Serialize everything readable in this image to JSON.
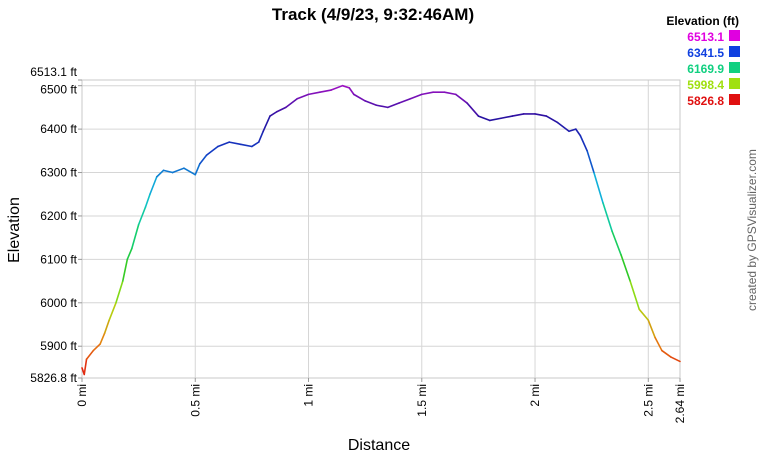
{
  "chart_data": {
    "type": "line",
    "title": "Track (4/9/23, 9:32:46AM)",
    "xlabel": "Distance",
    "ylabel": "Elevation",
    "xlim": [
      0,
      2.64
    ],
    "ylim": [
      5826.8,
      6513.1
    ],
    "x_ticks": [
      {
        "v": 0,
        "label": "0 mi"
      },
      {
        "v": 0.5,
        "label": "0.5 mi"
      },
      {
        "v": 1,
        "label": "1 mi"
      },
      {
        "v": 1.5,
        "label": "1.5 mi"
      },
      {
        "v": 2,
        "label": "2 mi"
      },
      {
        "v": 2.5,
        "label": "2.5 mi"
      },
      {
        "v": 2.64,
        "label": "2.64 mi"
      }
    ],
    "y_ticks": [
      {
        "v": 5826.8,
        "label": "5826.8 ft"
      },
      {
        "v": 5900,
        "label": "5900 ft"
      },
      {
        "v": 6000,
        "label": "6000 ft"
      },
      {
        "v": 6100,
        "label": "6100 ft"
      },
      {
        "v": 6200,
        "label": "6200 ft"
      },
      {
        "v": 6300,
        "label": "6300 ft"
      },
      {
        "v": 6400,
        "label": "6400 ft"
      },
      {
        "v": 6500,
        "label": "6500 ft"
      },
      {
        "v": 6513.1,
        "label": "6513.1 ft"
      }
    ],
    "grid": true,
    "legend": {
      "title": "Elevation (ft)",
      "position": "top-right",
      "entries": [
        {
          "label": "6513.1",
          "color": "#e000e0"
        },
        {
          "label": "6341.5",
          "color": "#1040e0"
        },
        {
          "label": "6169.9",
          "color": "#10d080"
        },
        {
          "label": "5998.4",
          "color": "#a0e010"
        },
        {
          "label": "5826.8",
          "color": "#e01010"
        }
      ]
    },
    "series": [
      {
        "x": [
          0,
          0.01,
          0.02,
          0.05,
          0.08,
          0.1,
          0.12,
          0.15,
          0.18,
          0.2,
          0.22,
          0.25,
          0.28,
          0.3,
          0.33,
          0.36,
          0.4,
          0.45,
          0.5,
          0.52,
          0.55,
          0.6,
          0.65,
          0.7,
          0.75,
          0.78,
          0.8,
          0.83,
          0.86,
          0.9,
          0.95,
          1.0,
          1.05,
          1.1,
          1.15,
          1.18,
          1.2,
          1.25,
          1.3,
          1.35,
          1.4,
          1.45,
          1.5,
          1.55,
          1.6,
          1.65,
          1.7,
          1.75,
          1.8,
          1.85,
          1.9,
          1.95,
          2.0,
          2.05,
          2.1,
          2.15,
          2.18,
          2.2,
          2.23,
          2.26,
          2.3,
          2.34,
          2.38,
          2.42,
          2.46,
          2.5,
          2.53,
          2.56,
          2.6,
          2.64
        ],
        "y": [
          5850,
          5835,
          5870,
          5890,
          5905,
          5930,
          5960,
          6000,
          6050,
          6100,
          6125,
          6180,
          6220,
          6250,
          6290,
          6305,
          6300,
          6310,
          6295,
          6320,
          6340,
          6360,
          6370,
          6365,
          6360,
          6370,
          6395,
          6430,
          6440,
          6450,
          6470,
          6480,
          6485,
          6490,
          6500,
          6495,
          6480,
          6465,
          6455,
          6450,
          6460,
          6470,
          6480,
          6485,
          6485,
          6480,
          6460,
          6430,
          6420,
          6425,
          6430,
          6435,
          6435,
          6430,
          6415,
          6395,
          6400,
          6385,
          6350,
          6300,
          6230,
          6165,
          6110,
          6050,
          5985,
          5960,
          5920,
          5890,
          5875,
          5865
        ]
      }
    ]
  },
  "credit": "created by GPSVisualizer.com"
}
